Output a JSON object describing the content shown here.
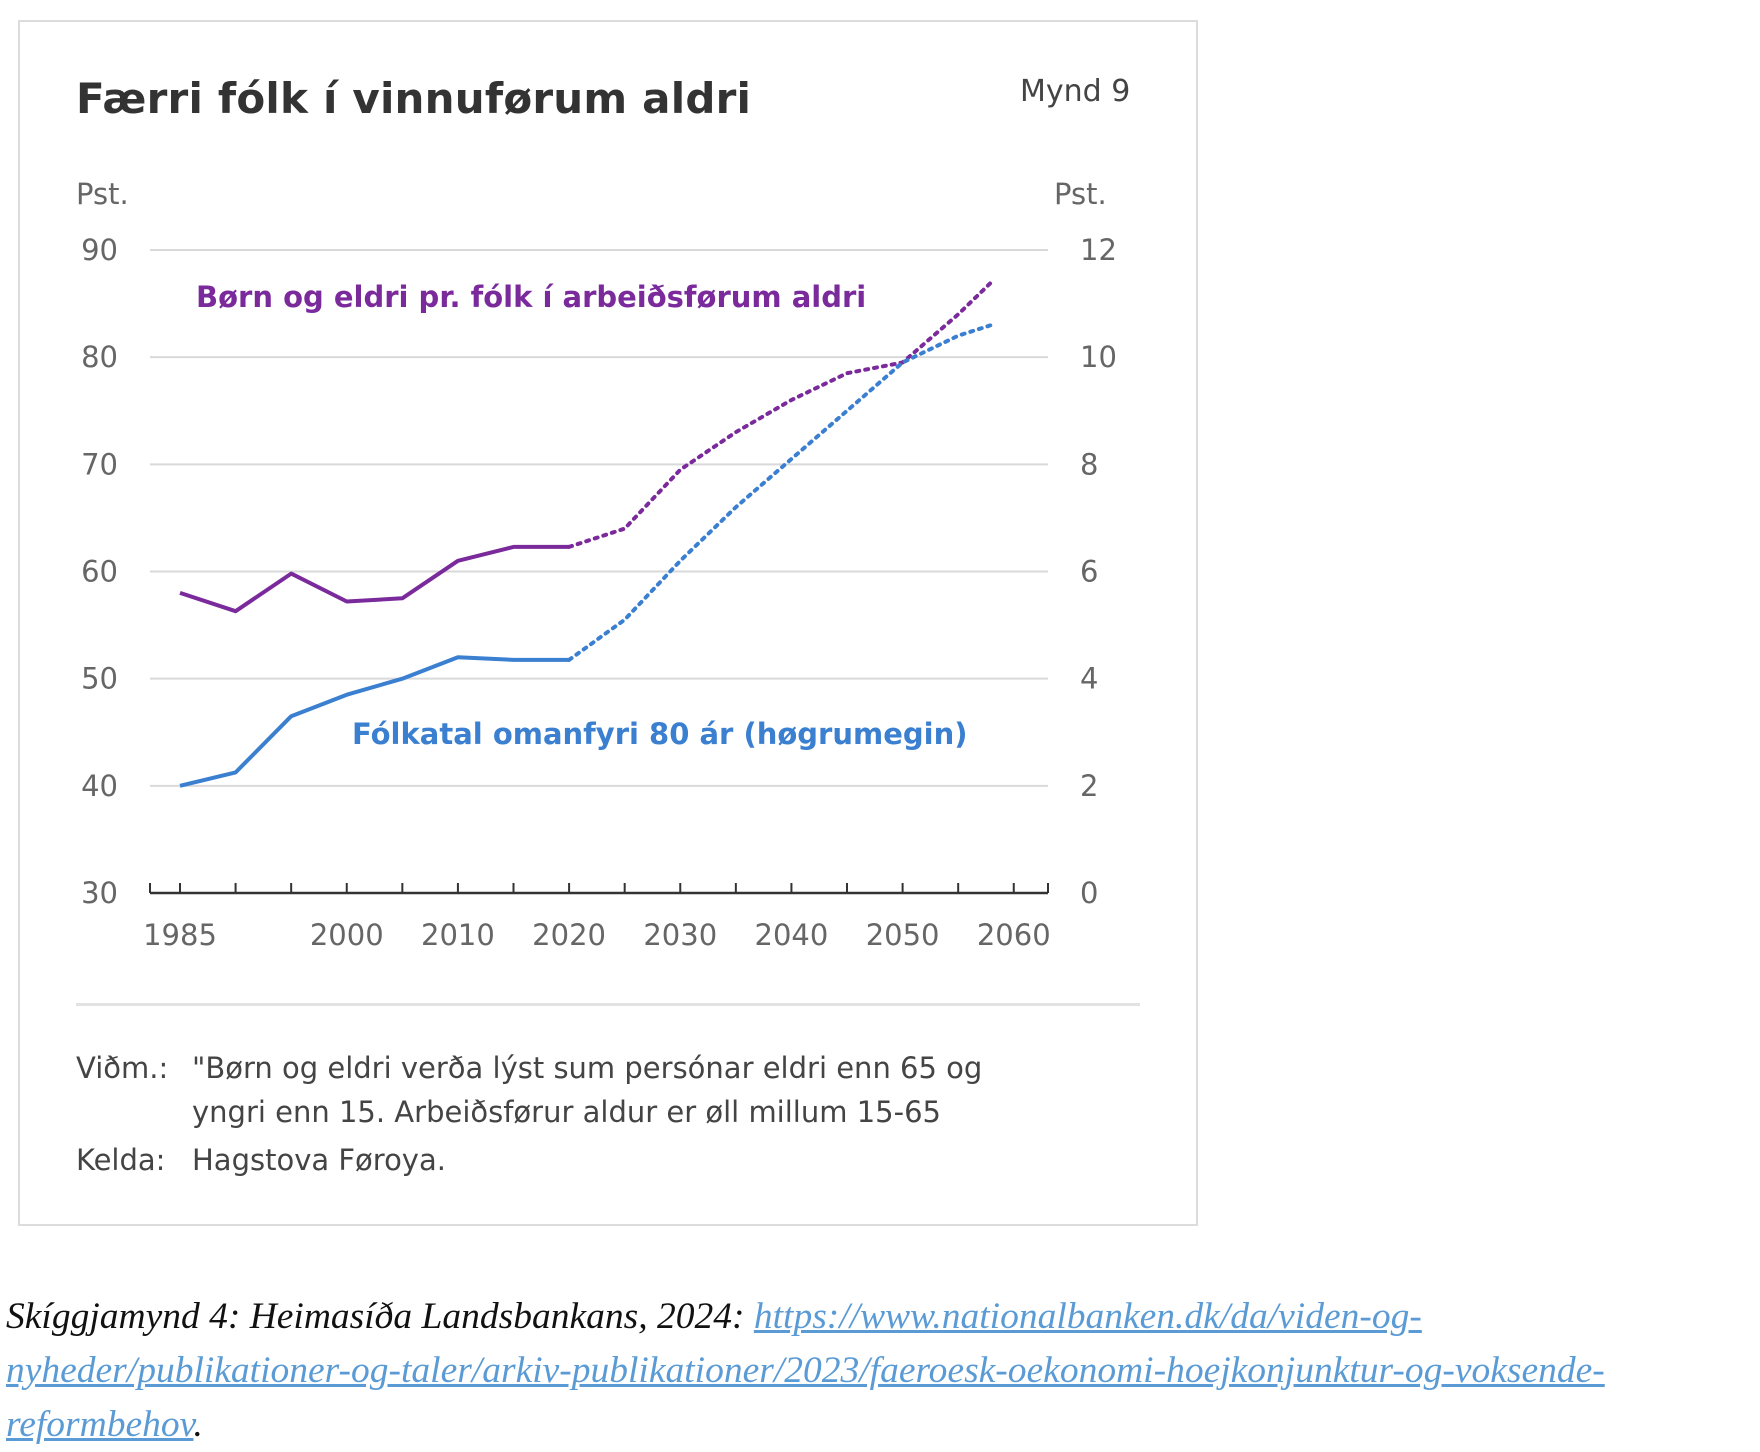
{
  "figure": {
    "title": "Færri fólk í vinnuførum aldri",
    "figure_number": "Mynd 9",
    "note_key": "Viðm.:",
    "note_text_line1": "\"Børn og eldri verða lýst sum persónar eldri enn 65 og",
    "note_text_line2": "yngri enn 15. Arbeiðsførur aldur er øll millum 15-65",
    "source_key": "Kelda:",
    "source_text": "Hagstova Føroya."
  },
  "caption": {
    "prefix": "Skíggjamynd 4: Heimasíða Landsbankans, 2024: ",
    "link_text": "https://www.nationalbanken.dk/da/viden-og-nyheder/publikationer-og-taler/arkiv-publikationer/2023/faeroesk-oekonomi-hoejkonjunktur-og-voksende-reformbehov",
    "suffix": "."
  },
  "chart_data": {
    "type": "line",
    "title": "Færri fólk í vinnuførum aldri",
    "left_axis": {
      "label": "Pst.",
      "range": [
        30,
        90
      ],
      "ticks": [
        30,
        40,
        50,
        60,
        70,
        80,
        90
      ]
    },
    "right_axis": {
      "label": "Pst.",
      "range": [
        0,
        12
      ],
      "ticks": [
        0,
        2,
        4,
        6,
        8,
        10,
        12
      ]
    },
    "x_axis": {
      "range": [
        1985,
        2060
      ],
      "tick_labels": [
        1985,
        2000,
        2010,
        2020,
        2030,
        2040,
        2050,
        2060
      ]
    },
    "grid": "horizontal",
    "series": [
      {
        "name": "Børn og eldri pr. fólk í arbeiðsførum aldri",
        "axis": "left",
        "color": "#7b2a9c",
        "actual": {
          "x": [
            1985,
            1990,
            1995,
            2000,
            2005,
            2010,
            2015,
            2020
          ],
          "y": [
            58.0,
            56.3,
            59.8,
            57.2,
            57.5,
            61.0,
            62.3,
            62.3
          ]
        },
        "projection": {
          "x": [
            2020,
            2025,
            2030,
            2035,
            2040,
            2045,
            2050,
            2055,
            2058
          ],
          "y": [
            62.3,
            64.0,
            69.5,
            73.0,
            76.0,
            78.5,
            79.5,
            84.0,
            87.0
          ]
        }
      },
      {
        "name": "Fólkatal omanfyri 80 ár (høgrumegin)",
        "axis": "right",
        "color": "#3a7fd0",
        "actual": {
          "x": [
            1985,
            1990,
            1995,
            2000,
            2005,
            2010,
            2015,
            2020
          ],
          "y": [
            2.0,
            2.25,
            3.3,
            3.7,
            4.0,
            4.4,
            4.35,
            4.35
          ]
        },
        "projection": {
          "x": [
            2020,
            2025,
            2030,
            2035,
            2040,
            2045,
            2050,
            2055,
            2058
          ],
          "y": [
            4.35,
            5.1,
            6.2,
            7.2,
            8.1,
            9.0,
            9.9,
            10.4,
            10.6
          ]
        }
      }
    ]
  }
}
